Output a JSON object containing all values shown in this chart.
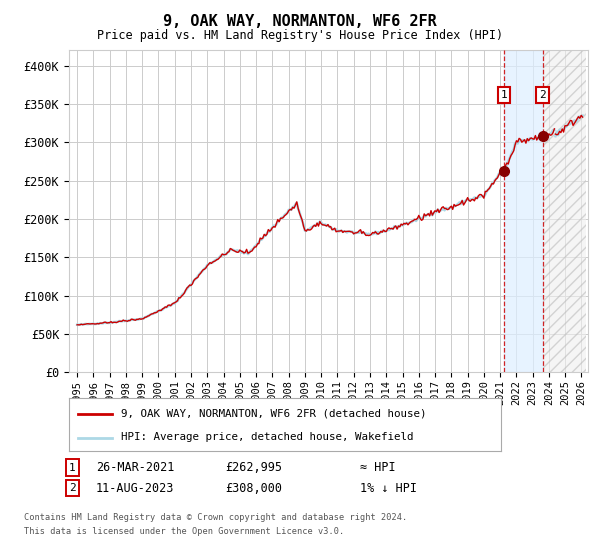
{
  "title": "9, OAK WAY, NORMANTON, WF6 2FR",
  "subtitle": "Price paid vs. HM Land Registry's House Price Index (HPI)",
  "ylim": [
    0,
    420000
  ],
  "yticks": [
    0,
    50000,
    100000,
    150000,
    200000,
    250000,
    300000,
    350000,
    400000
  ],
  "ytick_labels": [
    "£0",
    "£50K",
    "£100K",
    "£150K",
    "£200K",
    "£250K",
    "£300K",
    "£350K",
    "£400K"
  ],
  "transaction1_price": 262995,
  "transaction2_price": 308000,
  "hpi_line_color": "#add8e6",
  "price_line_color": "#cc0000",
  "marker_color": "#880000",
  "dashed_line_color": "#cc0000",
  "shade_color": "#ddeeff",
  "legend_line1": "9, OAK WAY, NORMANTON, WF6 2FR (detached house)",
  "legend_line2": "HPI: Average price, detached house, Wakefield",
  "annotation1_date": "26-MAR-2021",
  "annotation1_price": "£262,995",
  "annotation1_hpi": "≈ HPI",
  "annotation2_date": "11-AUG-2023",
  "annotation2_price": "£308,000",
  "annotation2_hpi": "1% ↓ HPI",
  "footnote1": "Contains HM Land Registry data © Crown copyright and database right 2024.",
  "footnote2": "This data is licensed under the Open Government Licence v3.0.",
  "background_color": "#ffffff",
  "grid_color": "#cccccc"
}
